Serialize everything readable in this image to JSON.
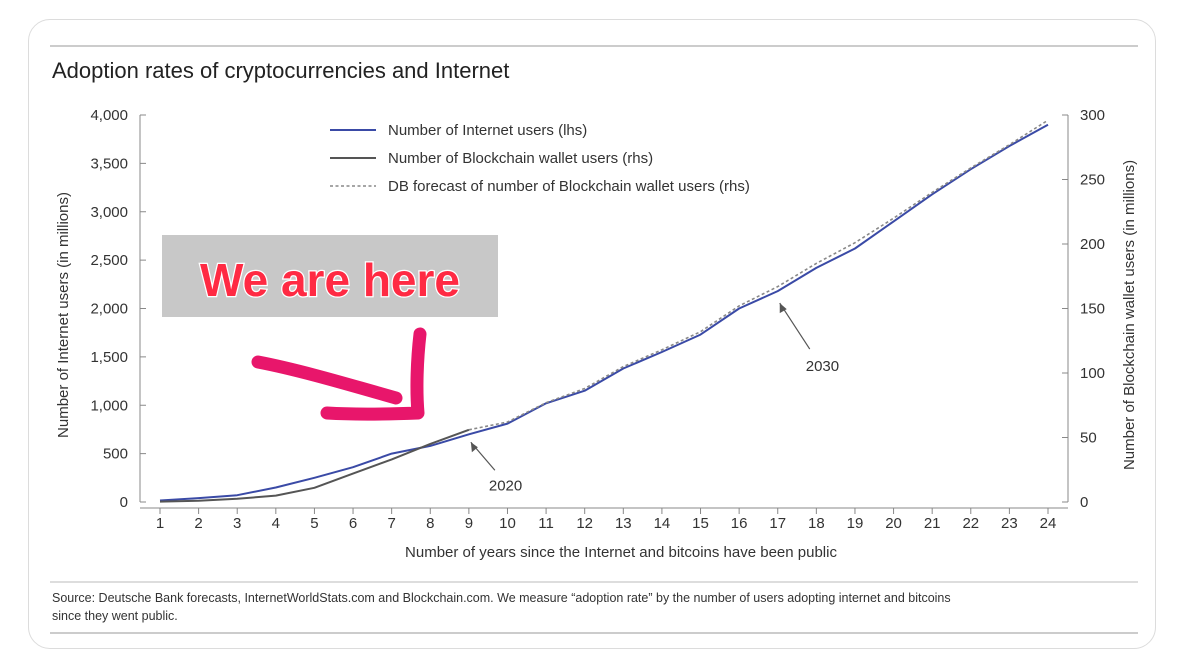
{
  "chart_data": {
    "type": "line",
    "title": "Adoption rates of cryptocurrencies and Internet",
    "xlabel": "Number of years since the Internet and bitcoins have been public",
    "ylabel_left": "Number of Internet users (in millions)",
    "ylabel_right": "Number of Blockchain wallet users (in millions)",
    "x": [
      1,
      2,
      3,
      4,
      5,
      6,
      7,
      8,
      9,
      10,
      11,
      12,
      13,
      14,
      15,
      16,
      17,
      18,
      19,
      20,
      21,
      22,
      23,
      24
    ],
    "x_tick_labels": [
      "1",
      "2",
      "3",
      "4",
      "5",
      "6",
      "7",
      "8",
      "9",
      "10",
      "11",
      "12",
      "13",
      "14",
      "15",
      "16",
      "17",
      "18",
      "19",
      "20",
      "21",
      "22",
      "23",
      "24"
    ],
    "xlim": [
      1,
      24
    ],
    "ylim_left": [
      0,
      4000
    ],
    "ylim_right": [
      0,
      300
    ],
    "y_left_ticks": [
      0,
      500,
      1000,
      1500,
      2000,
      2500,
      3000,
      3500,
      4000
    ],
    "y_left_tick_labels": [
      "0",
      "500",
      "1,000",
      "1,500",
      "2,000",
      "2,500",
      "3,000",
      "3,500",
      "4,000"
    ],
    "y_right_ticks": [
      0,
      50,
      100,
      150,
      200,
      250,
      300
    ],
    "y_right_tick_labels": [
      "0",
      "50",
      "100",
      "150",
      "200",
      "250",
      "300"
    ],
    "legend_position": "top-center",
    "grid": false,
    "series": [
      {
        "name": "Number of Internet users (lhs)",
        "axis": "left",
        "style": "solid",
        "color": "#3a4aa6",
        "x": [
          1,
          2,
          3,
          4,
          5,
          6,
          7,
          8,
          9,
          10,
          11,
          12,
          13,
          14,
          15,
          16,
          17,
          18,
          19,
          20,
          21,
          22,
          23,
          24
        ],
        "values": [
          16,
          40,
          70,
          150,
          250,
          360,
          500,
          580,
          700,
          810,
          1020,
          1150,
          1380,
          1550,
          1730,
          2000,
          2180,
          2420,
          2620,
          2900,
          3180,
          3440,
          3680,
          3900
        ]
      },
      {
        "name": "Number of Blockchain wallet users (rhs)",
        "axis": "right",
        "style": "solid",
        "color": "#555555",
        "x": [
          1,
          2,
          3,
          4,
          5,
          6,
          7,
          8,
          9
        ],
        "values": [
          0.3,
          1,
          2.5,
          5,
          11,
          22,
          33,
          45,
          56
        ]
      },
      {
        "name": "DB forecast of number of Blockchain wallet users (rhs)",
        "axis": "right",
        "style": "dashed",
        "color": "#888888",
        "x": [
          9,
          10,
          11,
          12,
          13,
          14,
          15,
          16,
          17,
          18,
          19,
          20,
          21,
          22,
          23,
          24
        ],
        "values": [
          56,
          62,
          77,
          88,
          105,
          118,
          132,
          152,
          167,
          185,
          201,
          220,
          240,
          259,
          277,
          296
        ]
      }
    ],
    "annotations": [
      {
        "text": "2020",
        "x": 9,
        "y_left": 700
      },
      {
        "text": "2030",
        "x": 17,
        "y_left": 2180
      }
    ],
    "source": "Source: Deutsche Bank forecasts, InternetWorldStats.com and Blockchain.com. We measure “adoption rate” by the number of users adopting internet and bitcoins since they went public."
  },
  "overlay": {
    "label": "We are here",
    "label_bg_color": "#c8c8c8",
    "label_color": "#ff2a43",
    "arrow_color": "#e8166b"
  }
}
